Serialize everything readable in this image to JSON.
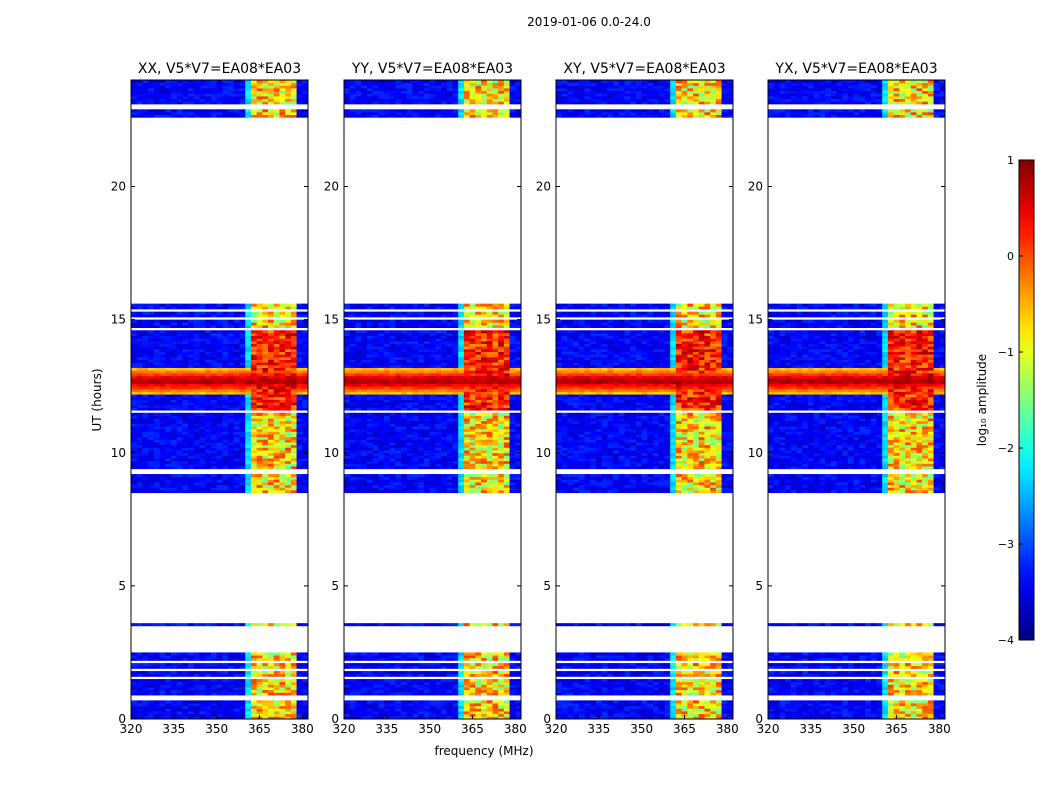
{
  "figure": {
    "suptitle": "2019-01-06 0.0-24.0"
  },
  "chart_data": {
    "type": "heatmap",
    "xlabel": "frequency (MHz)",
    "ylabel": "UT (hours)",
    "xlim": [
      320,
      382
    ],
    "ylim": [
      0,
      24
    ],
    "x_ticks": [
      320,
      335,
      350,
      365,
      380
    ],
    "y_ticks": [
      0,
      5,
      10,
      15,
      20
    ],
    "colorbar": {
      "label": "log₁₀ amplitude",
      "range": [
        -4,
        1
      ],
      "ticks": [
        "1",
        "0",
        "−1",
        "−2",
        "−3",
        "−4"
      ],
      "tick_values": [
        1,
        0,
        -1,
        -2,
        -3,
        -4
      ]
    },
    "observed_hour_ranges": [
      [
        0.0,
        3.6
      ],
      [
        8.5,
        15.6
      ],
      [
        22.6,
        24.0
      ]
    ],
    "flagged_hour_rows": [
      [
        0.75,
        0.95
      ],
      [
        1.5,
        1.6
      ],
      [
        1.85,
        1.95
      ],
      [
        2.15,
        2.25
      ],
      [
        2.55,
        3.5
      ],
      [
        9.15,
        9.35
      ],
      [
        11.5,
        11.6
      ],
      [
        14.6,
        14.7
      ],
      [
        14.95,
        15.05
      ],
      [
        15.3,
        15.35
      ],
      [
        22.95,
        23.1
      ]
    ],
    "bright_band_hours": [
      12.2,
      13.2
    ],
    "rfi_band_mhz": [
      362,
      379
    ],
    "series": [
      {
        "name": "XX, V5*V7=EA08*EA03"
      },
      {
        "name": "YY, V5*V7=EA08*EA03"
      },
      {
        "name": "XY, V5*V7=EA08*EA03"
      },
      {
        "name": "YX, V5*V7=EA08*EA03"
      }
    ]
  }
}
